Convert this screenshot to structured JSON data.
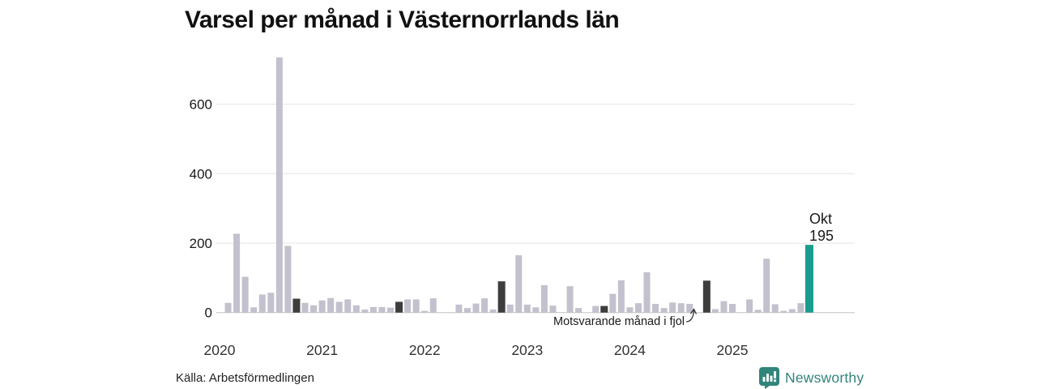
{
  "title": "Varsel per månad i Västernorrlands län",
  "source": "Källa: Arbetsförmedlingen",
  "branding": {
    "name": "Newsworthy",
    "color": "#31857b"
  },
  "annotation": {
    "text": "Motsvarande månad i fjol"
  },
  "current_label": {
    "month": "Okt",
    "value": "195"
  },
  "colors": {
    "bar": "#c2c1cd",
    "bar_same_month_last_year": "#3d3d3d",
    "bar_current": "#199c8d",
    "grid": "#e4e4e4",
    "axis": "#c2c2c2",
    "tick_text": "#1a1a1a",
    "year_text": "#333333"
  },
  "chart_data": {
    "type": "bar",
    "title": "Varsel per månad i Västernorrlands län",
    "xlabel": "",
    "ylabel": "",
    "ylim": [
      0,
      760
    ],
    "yticks": [
      0,
      200,
      400,
      600
    ],
    "grid": true,
    "legend": "none",
    "x_unit": "month",
    "years": [
      {
        "year": "2020",
        "values": [
          0,
          28,
          227,
          103,
          15,
          52,
          57,
          735,
          192,
          40,
          28,
          21
        ]
      },
      {
        "year": "2021",
        "values": [
          35,
          42,
          31,
          38,
          21,
          9,
          16,
          16,
          14,
          31,
          38,
          38
        ]
      },
      {
        "year": "2022",
        "values": [
          5,
          41,
          0,
          0,
          23,
          13,
          26,
          41,
          9,
          90,
          23,
          165
        ]
      },
      {
        "year": "2023",
        "values": [
          23,
          15,
          79,
          20,
          0,
          76,
          13,
          0,
          19,
          19,
          54,
          93
        ]
      },
      {
        "year": "2024",
        "values": [
          15,
          27,
          116,
          25,
          13,
          29,
          27,
          25,
          0,
          92,
          10,
          33
        ]
      },
      {
        "year": "2025",
        "values": [
          25,
          0,
          38,
          8,
          155,
          24,
          5,
          10,
          27,
          195
        ]
      }
    ],
    "highlight": {
      "same_month_last_year": [
        "2020-10",
        "2021-10",
        "2022-10",
        "2023-10",
        "2024-10"
      ],
      "current": "2025-10"
    },
    "current_point": {
      "label": "Okt",
      "value": 195
    }
  }
}
